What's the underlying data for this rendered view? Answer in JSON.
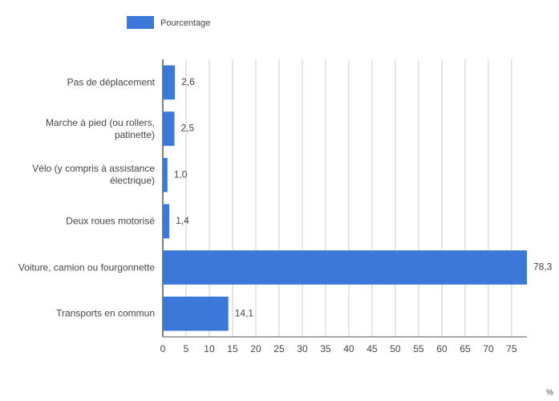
{
  "chart_data": {
    "type": "hbar",
    "categories": [
      "Pas de déplacement",
      "Marche à pied (ou rollers, patinette)",
      "Vélo (y compris à assistance électrique)",
      "Deux roues motorisé",
      "Voiture, camion ou fourgonnette",
      "Transports en commun"
    ],
    "series": [
      {
        "name": "Pourcentage",
        "color": "#3c78d8",
        "values": [
          2.6,
          2.5,
          1.0,
          1.4,
          78.3,
          14.1
        ],
        "value_labels": [
          "2,6",
          "2,5",
          "1,0",
          "1,4",
          "78,3",
          "14,1"
        ]
      }
    ],
    "xlabel": "%",
    "xlim": [
      0,
      78.3
    ],
    "xticks": [
      0,
      5,
      10,
      15,
      20,
      25,
      30,
      35,
      40,
      45,
      50,
      55,
      60,
      65,
      70,
      75
    ],
    "grid": true,
    "legend": "top"
  }
}
